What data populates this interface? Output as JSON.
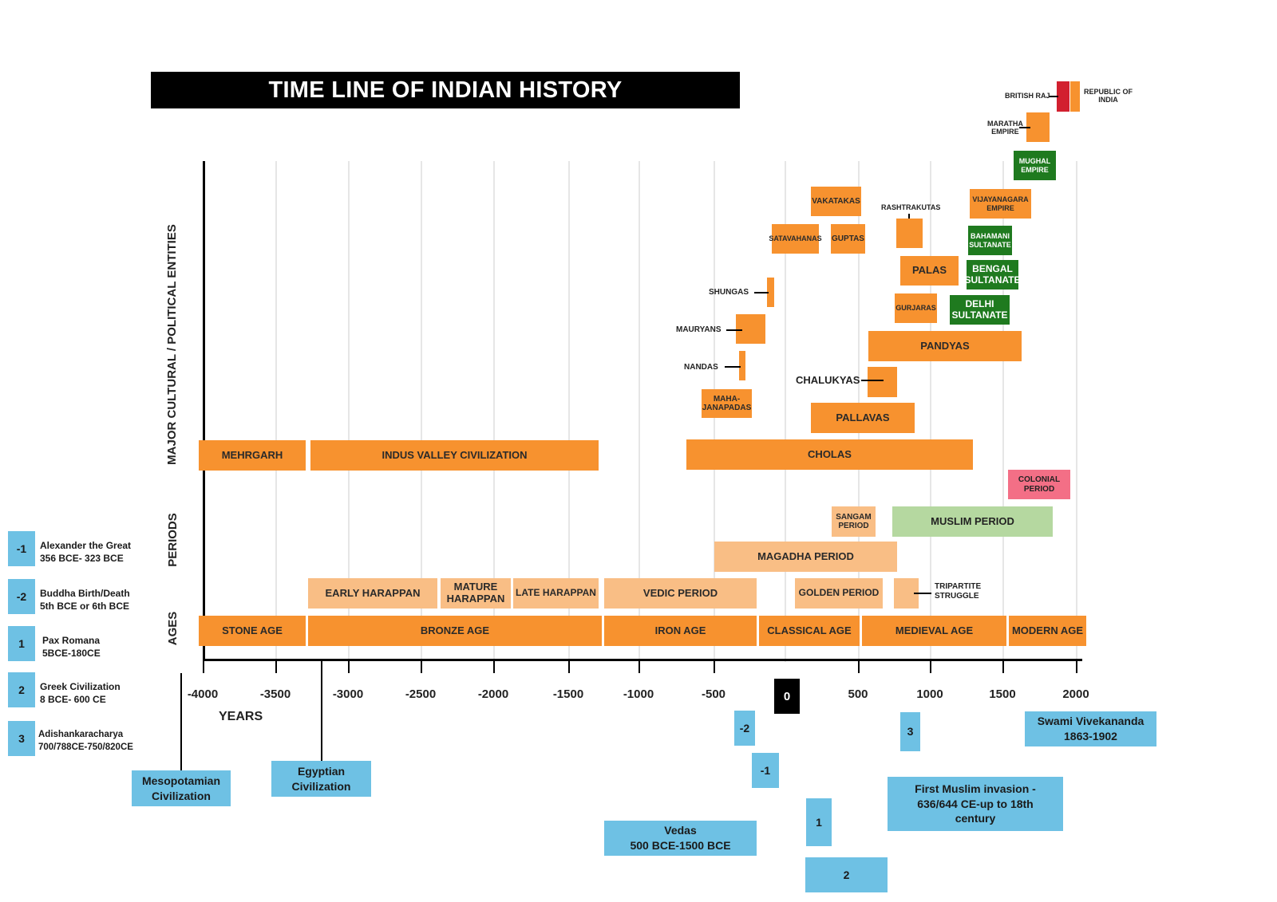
{
  "title": "TIME LINE OF INDIAN HISTORY",
  "row_labels": {
    "entities": "MAJOR CULTURAL / POLITICAL ENTITIES",
    "periods": "PERIODS",
    "ages": "AGES"
  },
  "axis": {
    "label": "YEARS",
    "ticks": [
      "-4000",
      "-3500",
      "-3000",
      "-2500",
      "-2000",
      "-1500",
      "-1000",
      "-500",
      "0",
      "500",
      "1000",
      "1500",
      "2000"
    ]
  },
  "ages": [
    "STONE AGE",
    "BRONZE AGE",
    "IRON AGE",
    "CLASSICAL AGE",
    "MEDIEVAL AGE",
    "MODERN AGE"
  ],
  "periods": {
    "early_harappan": "EARLY HARAPPAN",
    "mature_harappan": "MATURE\nHARAPPAN",
    "late_harappan": "LATE HARAPPAN",
    "vedic": "VEDIC PERIOD",
    "golden": "GOLDEN PERIOD",
    "tripartite": "TRIPARTITE\nSTRUGGLE",
    "magadha": "MAGADHA PERIOD",
    "sangam": "SANGAM\nPERIOD",
    "muslim": "MUSLIM PERIOD",
    "colonial": "COLONIAL\nPERIOD"
  },
  "entities": {
    "mehrgarh": "MEHRGARH",
    "indus": "INDUS VALLEY CIVILIZATION",
    "cholas": "CHOLAS",
    "pallavas": "PALLAVAS",
    "chalukyas": "CHALUKYAS",
    "mahajanapadas": "MAHA-\nJANAPADAS",
    "nandas": "NANDAS",
    "mauryans": "MAURYANS",
    "shungas": "SHUNGAS",
    "satavahanas": "SATAVAHANAS",
    "guptas": "GUPTAS",
    "vakatakas": "VAKATAKAS",
    "rashtrakutas": "RASHTRAKUTAS",
    "palas": "PALAS",
    "gurjaras": "GURJARAS",
    "pandyas": "PANDYAS",
    "delhi_sultanate": "DELHI\nSULTANATE",
    "bengal_sultanate": "BENGAL\nSULTANATE",
    "bahamani_sultanate": "BAHAMANI\nSULTANATE",
    "vijayanagara": "VIJAYANAGARA\nEMPIRE",
    "mughal": "MUGHAL\nEMPIRE",
    "maratha": "MARATHA\nEMPIRE",
    "british_raj": "BRITISH RAJ",
    "republic": "REPUBLIC OF\nINDIA"
  },
  "legend": [
    {
      "num": "-1",
      "text": "Alexander the Great\n356 BCE- 323 BCE"
    },
    {
      "num": "-2",
      "text": "Buddha Birth/Death\n5th BCE or 6th BCE"
    },
    {
      "num": "1",
      "text": "Pax Romana\n5BCE-180CE"
    },
    {
      "num": "2",
      "text": "Greek Civilization\n8 BCE- 600 CE"
    },
    {
      "num": "3",
      "text": "Adishankaracharya\n700/788CE-750/820CE"
    }
  ],
  "annotations": {
    "mesopotamian": "Mesopotamian\nCivilization",
    "egyptian": "Egyptian\nCivilization",
    "vedas": "Vedas\n500 BCE-1500 BCE",
    "vivekananda": "Swami Vivekananda\n1863-1902",
    "muslim_invasion": "First Muslim invasion -\n636/644 CE-up to 18th\ncentury",
    "marker_m2": "-2",
    "marker_m1": "-1",
    "marker_1": "1",
    "marker_2": "2",
    "marker_3": "3"
  },
  "colors": {
    "entity": "#f7922f",
    "period": "#f9be85",
    "sultanate": "#1f7a1f",
    "muslim_period": "#b5d8a0",
    "colonial_period": "#f36f86",
    "british_raj": "#d2202f",
    "note": "#6ec1e4"
  }
}
